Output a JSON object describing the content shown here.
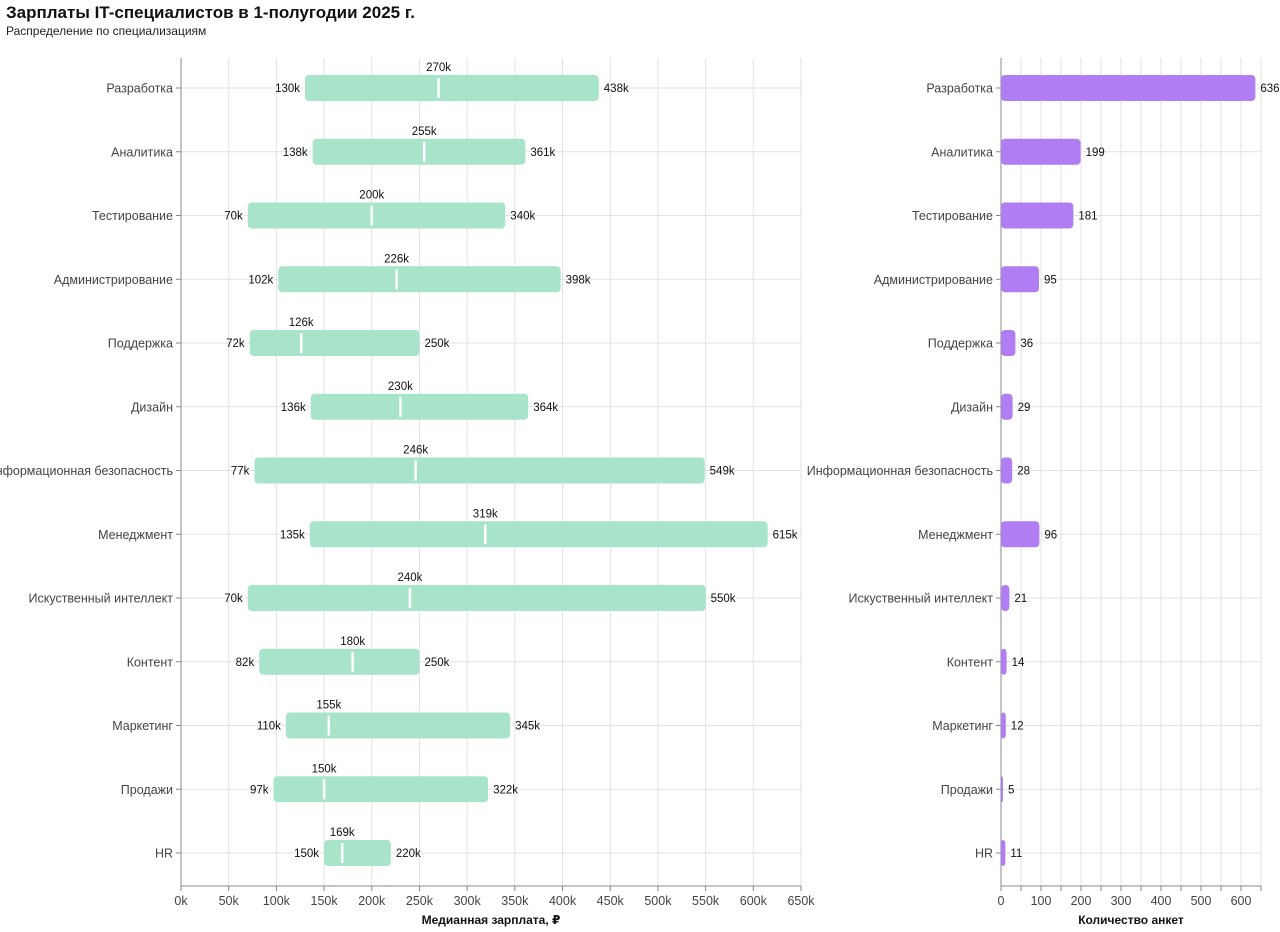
{
  "title": "Зарплаты IT-специалистов в 1-полугодии 2025 г.",
  "subtitle": "Распределение по специализациям",
  "colors": {
    "range_bar": "#a8e4ca",
    "count_bar": "#b07ef2",
    "median_line": "#ffffff"
  },
  "chart_data": [
    {
      "type": "bar",
      "orientation": "horizontal-range",
      "xlabel": "Медианная зарплата, ₽",
      "xlim": [
        0,
        650
      ],
      "x_unit": "k",
      "xticks": [
        "0k",
        "50k",
        "100k",
        "150k",
        "200k",
        "250k",
        "300k",
        "350k",
        "400k",
        "450k",
        "500k",
        "550k",
        "600k",
        "650k"
      ],
      "categories": [
        "Разработка",
        "Аналитика",
        "Тестирование",
        "Администрирование",
        "Поддержка",
        "Дизайн",
        "Информационная безопасность",
        "Менеджмент",
        "Искуственный интеллект",
        "Контент",
        "Маркетинг",
        "Продажи",
        "HR"
      ],
      "series": [
        {
          "name": "min",
          "values": [
            130,
            138,
            70,
            102,
            72,
            136,
            77,
            135,
            70,
            82,
            110,
            97,
            150
          ],
          "labels": [
            "130k",
            "138k",
            "70k",
            "102k",
            "72k",
            "136k",
            "77k",
            "135k",
            "70k",
            "82k",
            "110k",
            "97k",
            "150k"
          ]
        },
        {
          "name": "median",
          "values": [
            270,
            255,
            200,
            226,
            126,
            230,
            246,
            319,
            240,
            180,
            155,
            150,
            169
          ],
          "labels": [
            "270k",
            "255k",
            "200k",
            "226k",
            "126k",
            "230k",
            "246k",
            "319k",
            "240k",
            "180k",
            "155k",
            "150k",
            "169k"
          ]
        },
        {
          "name": "max",
          "values": [
            438,
            361,
            340,
            398,
            250,
            364,
            549,
            615,
            550,
            250,
            345,
            322,
            220
          ],
          "labels": [
            "438k",
            "361k",
            "340k",
            "398k",
            "250k",
            "364k",
            "549k",
            "615k",
            "550k",
            "250k",
            "345k",
            "322k",
            "220k"
          ]
        }
      ]
    },
    {
      "type": "bar",
      "orientation": "horizontal",
      "xlabel": "Количество анкет",
      "xlim": [
        0,
        650
      ],
      "xticks": [
        "0",
        "100",
        "200",
        "300",
        "400",
        "500",
        "600"
      ],
      "categories": [
        "Разработка",
        "Аналитика",
        "Тестирование",
        "Администрирование",
        "Поддержка",
        "Дизайн",
        "Информационная безопасность",
        "Менеджмент",
        "Искуственный интеллект",
        "Контент",
        "Маркетинг",
        "Продажи",
        "HR"
      ],
      "values": [
        636,
        199,
        181,
        95,
        36,
        29,
        28,
        96,
        21,
        14,
        12,
        5,
        11
      ],
      "labels": [
        "636",
        "199",
        "181",
        "95",
        "36",
        "29",
        "28",
        "96",
        "21",
        "14",
        "12",
        "5",
        "11"
      ]
    }
  ]
}
